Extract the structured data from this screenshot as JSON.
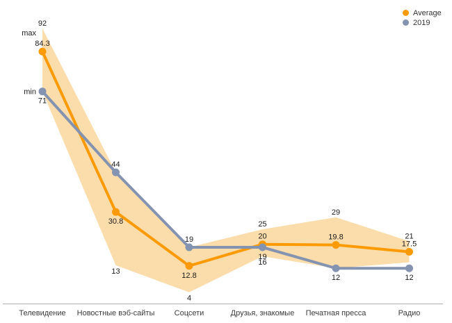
{
  "chart_data": {
    "type": "line",
    "title": "",
    "xlabel": "",
    "ylabel": "",
    "ylim": [
      0,
      100
    ],
    "grid": false,
    "legend_position": "top-right",
    "categories": [
      "Телевидение",
      "Новостные вэб-сайты",
      "Соцсети",
      "Друзья, знакомые",
      "Печатная пресса",
      "Радио"
    ],
    "series": [
      {
        "name": "Average",
        "color": "#FB9A02",
        "values": [
          84.3,
          30.8,
          12.8,
          20,
          19.8,
          17.5
        ],
        "point_labels": [
          "84.3",
          "30.8",
          "12.8",
          "20",
          "19.8",
          "17.5"
        ],
        "label_side": [
          "above",
          "below",
          "below",
          "above",
          "above",
          "above"
        ]
      },
      {
        "name": "2019",
        "color": "#8493B0",
        "values": [
          71,
          44,
          19,
          19,
          12,
          12
        ],
        "point_labels": [
          "71",
          "44",
          "19",
          "19",
          "12",
          "12"
        ],
        "label_side": [
          "below",
          "above",
          "above",
          "below",
          "below",
          "below"
        ]
      }
    ],
    "band": {
      "label_max": "max",
      "label_min": "min",
      "fill": "#FBDCAB",
      "max": [
        92,
        44,
        19,
        25,
        29,
        21
      ],
      "min": [
        71,
        13,
        4,
        16,
        12,
        14
      ],
      "max_point_labels": [
        "92",
        "",
        "",
        "25",
        "29",
        "21"
      ],
      "min_point_labels": [
        "",
        "13",
        "4",
        "16",
        "",
        ""
      ]
    },
    "axis": {
      "baseline_color": "#ADADAD",
      "label_color": "#3A3A3A"
    },
    "value_label_color": "#1B1B1B"
  }
}
